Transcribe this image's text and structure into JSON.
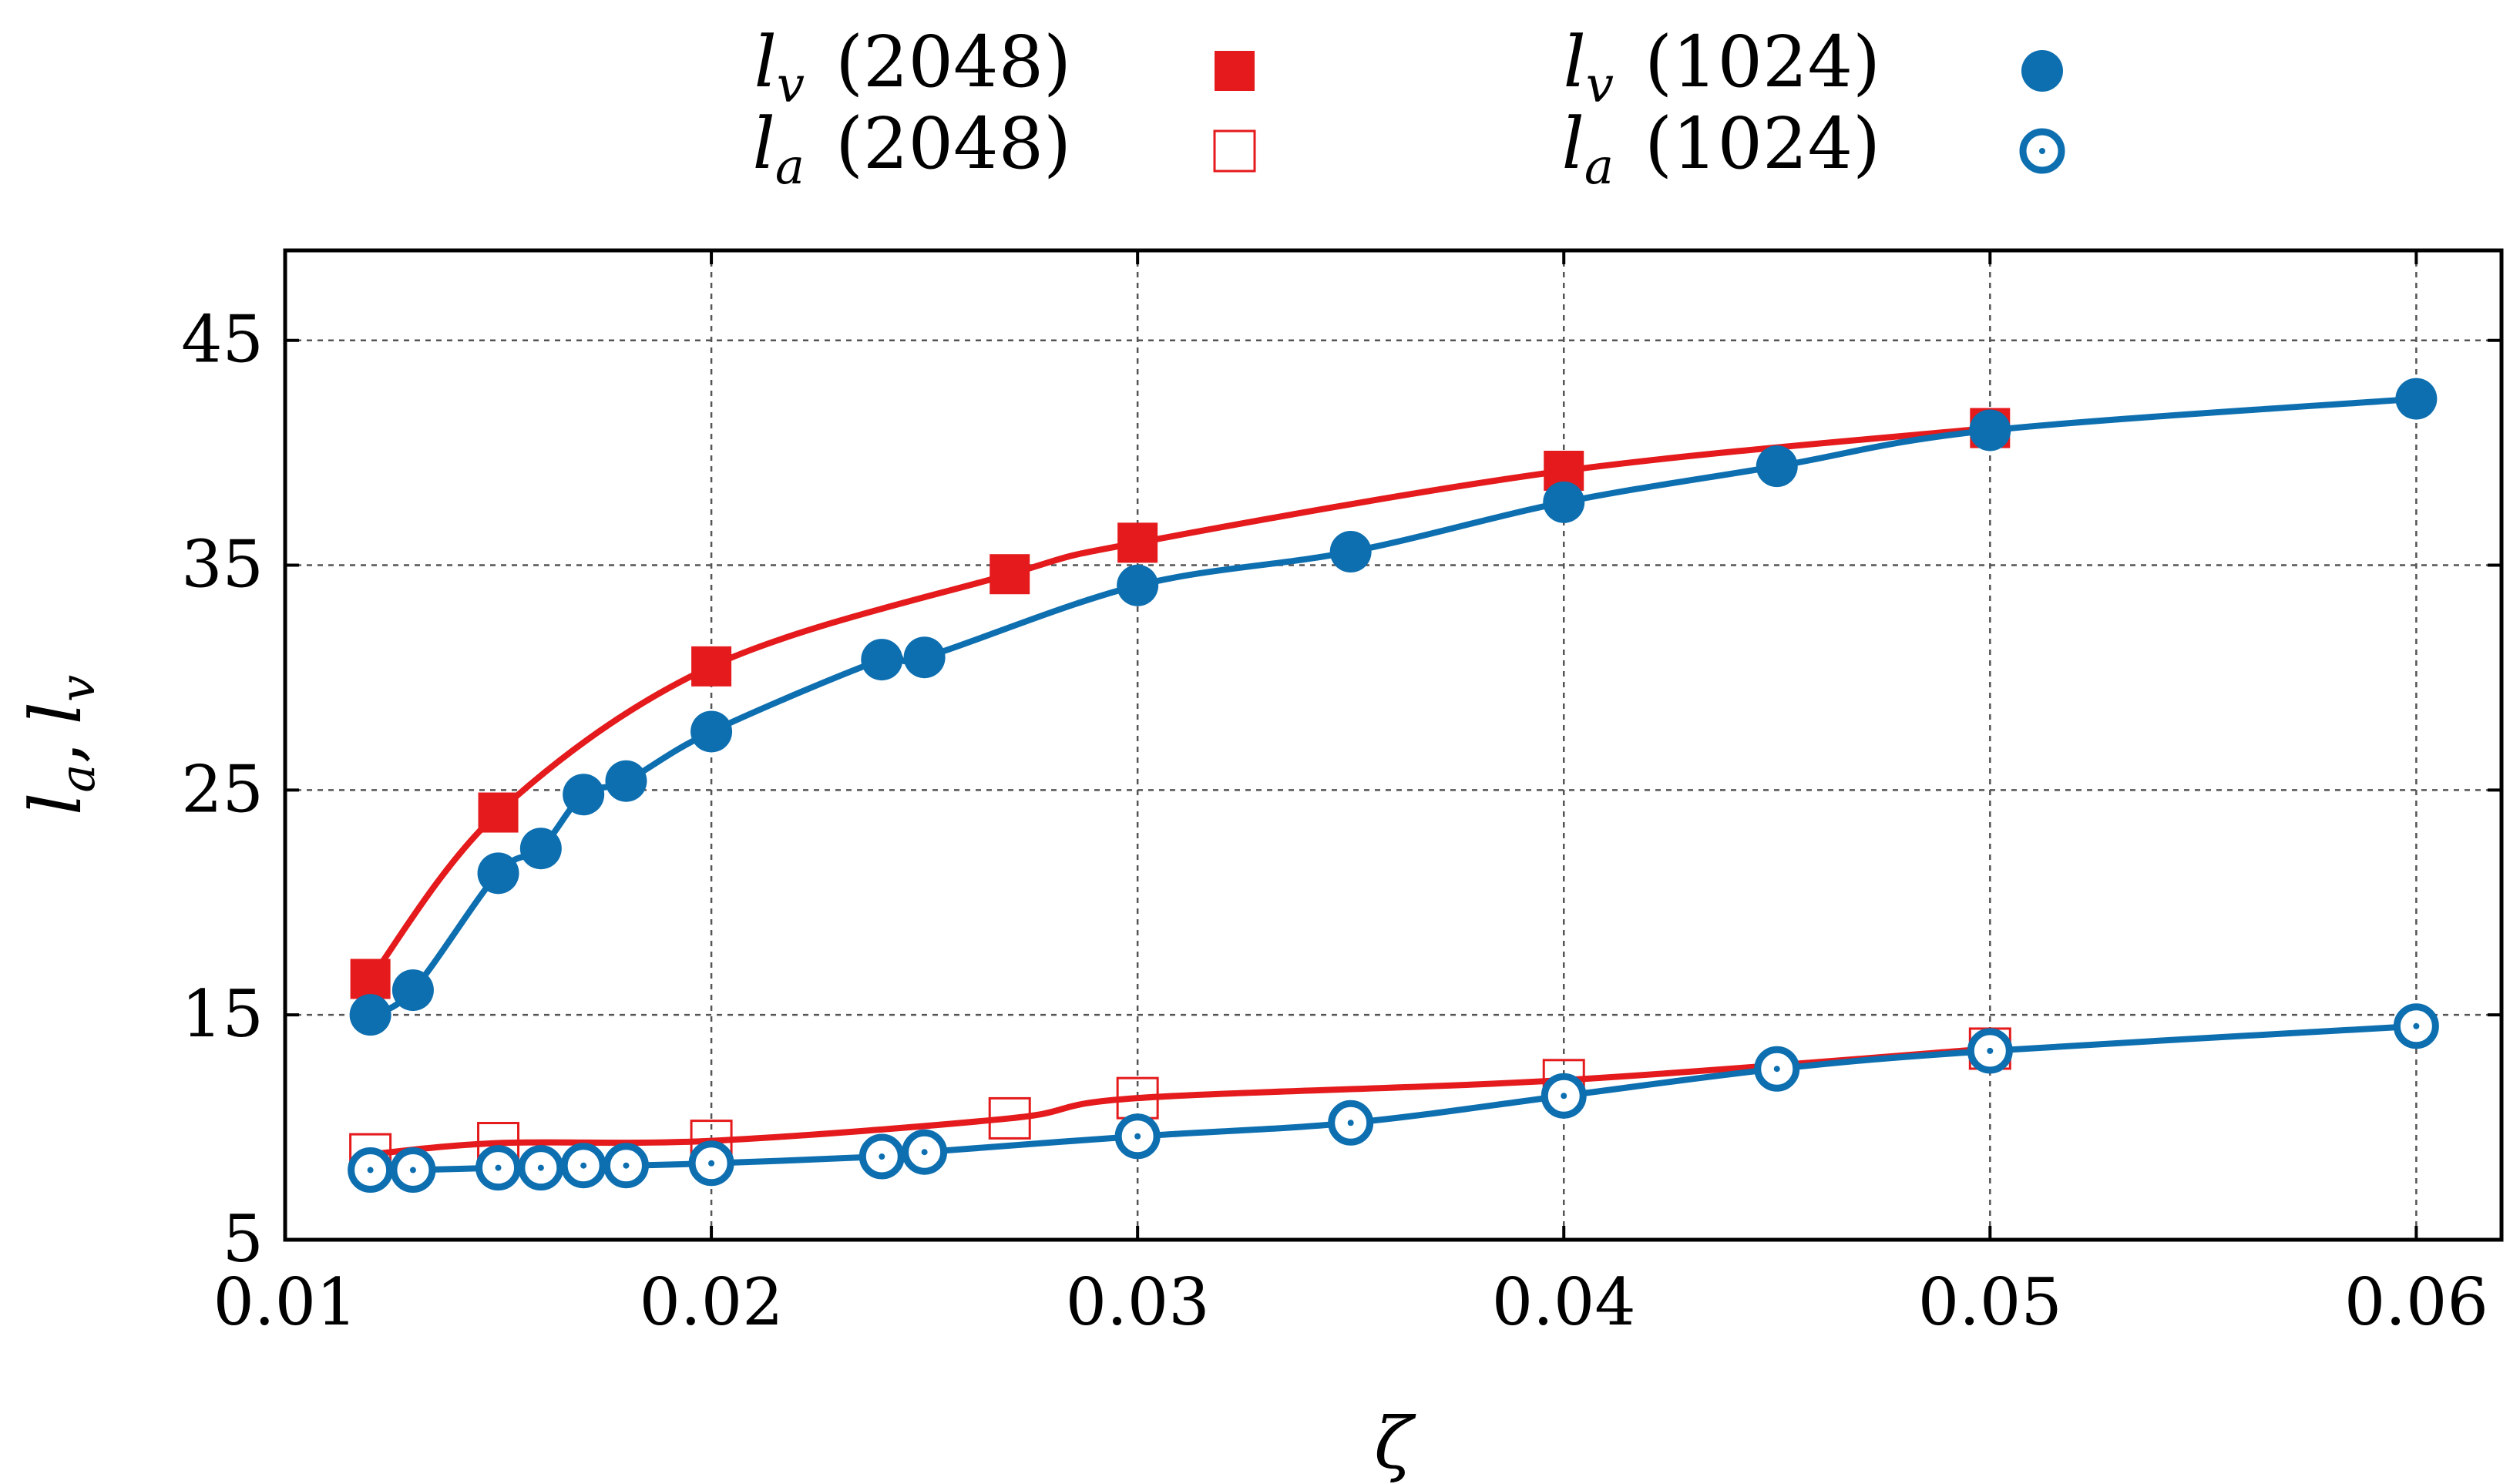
{
  "chart_data": {
    "type": "scatter",
    "title": "",
    "xlabel": "ζ",
    "ylabel": "l_a, l_v",
    "ylabel_parts": {
      "a": "l",
      "a_sub": "a",
      "sep": ",",
      "b": "l",
      "b_sub": "v"
    },
    "xlim": [
      0.01,
      0.062
    ],
    "ylim": [
      5,
      49
    ],
    "xticks": [
      0.01,
      0.02,
      0.03,
      0.04,
      0.05,
      0.06
    ],
    "xtick_labels": [
      "0.01",
      "0.02",
      "0.03",
      "0.04",
      "0.05",
      "0.06"
    ],
    "yticks": [
      5,
      15,
      25,
      35,
      45
    ],
    "ytick_labels": [
      "5",
      "15",
      "25",
      "35",
      "45"
    ],
    "grid": true,
    "legend_position": "top, outside plot, two columns",
    "series": [
      {
        "name": "l_v (2048)",
        "var": "l",
        "sub": "v",
        "size": "(2048)",
        "marker": "filled-square",
        "color": "#e41a1c",
        "x": [
          0.012,
          0.015,
          0.02,
          0.027,
          0.03,
          0.04,
          0.05
        ],
        "y": [
          16.6,
          24.0,
          30.5,
          34.6,
          36.0,
          39.2,
          41.1
        ]
      },
      {
        "name": "l_a (2048)",
        "var": "l",
        "sub": "a",
        "size": "(2048)",
        "marker": "open-square",
        "color": "#e41a1c",
        "x": [
          0.012,
          0.015,
          0.02,
          0.027,
          0.03,
          0.04,
          0.05
        ],
        "y": [
          8.8,
          9.3,
          9.4,
          10.4,
          11.3,
          12.1,
          13.5
        ]
      },
      {
        "name": "l_v (1024)",
        "var": "l",
        "sub": "v",
        "size": "(1024)",
        "marker": "filled-circle",
        "color": "#0d6fb0",
        "x": [
          0.012,
          0.013,
          0.015,
          0.016,
          0.017,
          0.018,
          0.02,
          0.024,
          0.025,
          0.03,
          0.035,
          0.04,
          0.045,
          0.05,
          0.06
        ],
        "y": [
          15.0,
          16.1,
          21.3,
          22.4,
          24.8,
          25.4,
          27.6,
          30.8,
          30.9,
          34.1,
          35.6,
          37.8,
          39.4,
          41.0,
          42.4
        ]
      },
      {
        "name": "l_a (1024)",
        "var": "l",
        "sub": "a",
        "size": "(1024)",
        "marker": "dotted-circle",
        "color": "#0d6fb0",
        "x": [
          0.012,
          0.013,
          0.015,
          0.016,
          0.017,
          0.018,
          0.02,
          0.024,
          0.025,
          0.03,
          0.035,
          0.04,
          0.045,
          0.05,
          0.06
        ],
        "y": [
          8.1,
          8.1,
          8.2,
          8.2,
          8.3,
          8.3,
          8.4,
          8.7,
          8.9,
          9.6,
          10.2,
          11.4,
          12.6,
          13.4,
          14.5
        ]
      }
    ]
  }
}
